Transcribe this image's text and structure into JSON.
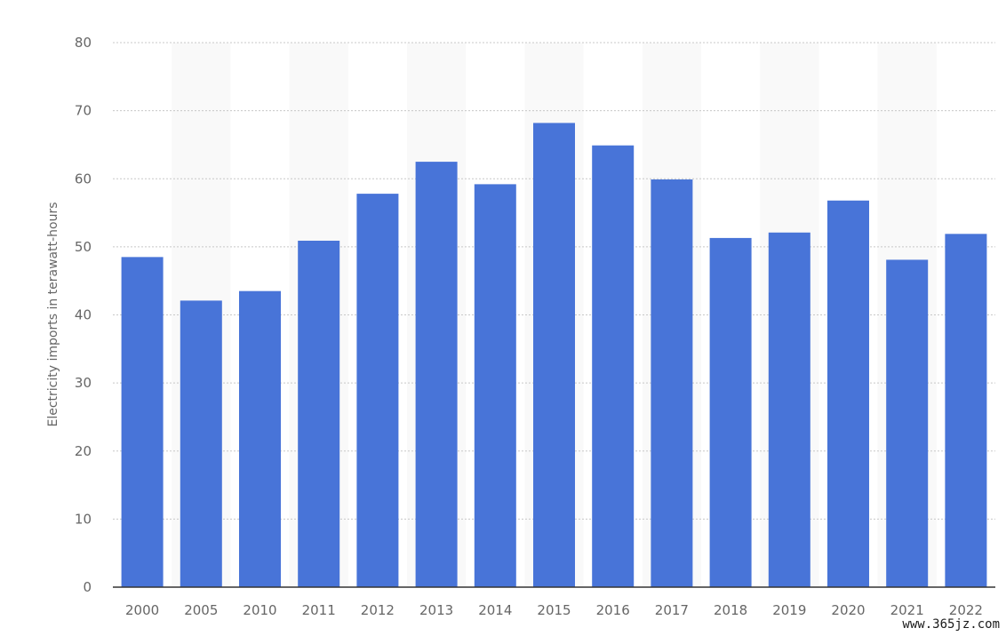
{
  "chart_data": {
    "type": "bar",
    "categories": [
      "2000",
      "2005",
      "2010",
      "2011",
      "2012",
      "2013",
      "2014",
      "2015",
      "2016",
      "2017",
      "2018",
      "2019",
      "2020",
      "2021",
      "2022"
    ],
    "values": [
      48.5,
      42.1,
      43.5,
      50.9,
      57.8,
      62.5,
      59.2,
      68.2,
      64.9,
      59.9,
      51.3,
      52.1,
      56.8,
      48.1,
      51.9
    ],
    "title": "",
    "xlabel": "",
    "ylabel": "Electricity imports in terawatt-hours",
    "ylim": [
      0,
      80
    ],
    "yticks": [
      0,
      10,
      20,
      30,
      40,
      50,
      60,
      70,
      80
    ],
    "grid": true,
    "bar_color": "#4874d8",
    "band_color": "#f9f9f9"
  },
  "watermark": "www.365jz.com"
}
